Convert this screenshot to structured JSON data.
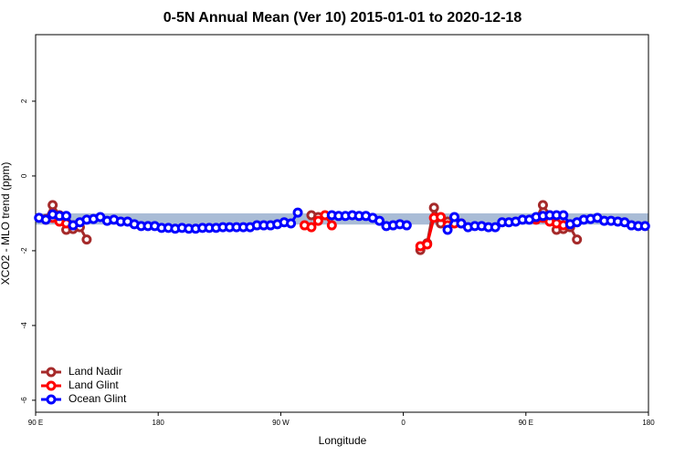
{
  "chart_data": {
    "type": "scatter",
    "title": "0-5N Annual Mean (Ver 10)   2015-01-01 to 2020-12-18",
    "x_label": "Longitude",
    "y_label": "XCO2 - MLO trend (ppm)",
    "xlim": [
      90,
      540
    ],
    "ylim": [
      -6.32,
      3.78
    ],
    "xticks": [
      {
        "value": 90,
        "label": "90 E"
      },
      180,
      {
        "value": 270,
        "label": "90 W"
      },
      {
        "value": 360,
        "label": "0"
      },
      {
        "value": 450,
        "label": "90 E"
      },
      {
        "value": 540,
        "label": "180"
      }
    ],
    "yticks": [
      2,
      0,
      -2,
      -4,
      -6
    ],
    "band": {
      "range": [
        -1.3,
        -1.0
      ],
      "color": "#a9bcd6"
    },
    "legend": "bottom-left",
    "series": [
      {
        "name": "Land Nadir",
        "color": "#a52a2a",
        "x": [
          97.5,
          102.5,
          107.5,
          112.5,
          117.5,
          122.5,
          127.5,
          200,
          292.5,
          297.5,
          340,
          372.5,
          377.5,
          382.5,
          387.5,
          392.5,
          420,
          457.5,
          462.5,
          467.5,
          472.5,
          477.5,
          482.5,
          487.5
        ],
        "values": [
          -1.15,
          -0.78,
          -1.05,
          -1.44,
          -1.42,
          -1.37,
          -1.7,
          null,
          -1.05,
          -1.1,
          null,
          -1.98,
          -1.8,
          -0.85,
          -1.27,
          -1.22,
          null,
          -1.15,
          -0.78,
          -1.05,
          -1.44,
          -1.42,
          -1.37,
          -1.7
        ]
      },
      {
        "name": "Land Glint",
        "color": "#ff0000",
        "x": [
          97.5,
          102.5,
          107.5,
          112.5,
          117.5,
          200,
          287.5,
          292.5,
          297.5,
          302.5,
          307.5,
          340,
          372.5,
          377.5,
          382.5,
          387.5,
          392.5,
          397.5,
          402.5,
          420,
          457.5,
          462.5,
          467.5,
          472.5,
          477.5
        ],
        "values": [
          -1.17,
          -1.12,
          -1.22,
          -1.27,
          -1.32,
          null,
          -1.32,
          -1.37,
          -1.2,
          -1.05,
          -1.32,
          null,
          -1.88,
          -1.83,
          -1.12,
          -1.1,
          -1.32,
          -1.27,
          -1.27,
          null,
          -1.17,
          -1.12,
          -1.22,
          -1.27,
          -1.32
        ]
      },
      {
        "name": "Ocean Glint",
        "color": "#0000ff",
        "x": [
          92.5,
          97.5,
          102.5,
          107.5,
          112.5,
          117.5,
          122.5,
          127.5,
          132.5,
          137.5,
          142.5,
          147.5,
          152.5,
          157.5,
          162.5,
          167.5,
          172.5,
          177.5,
          182.5,
          187.5,
          192.5,
          197.5,
          202.5,
          207.5,
          212.5,
          217.5,
          222.5,
          227.5,
          232.5,
          237.5,
          242.5,
          247.5,
          252.5,
          257.5,
          262.5,
          267.5,
          272.5,
          277.5,
          282.5,
          287.5,
          292.5,
          297.5,
          302.5,
          307.5,
          312.5,
          317.5,
          322.5,
          327.5,
          332.5,
          337.5,
          342.5,
          347.5,
          352.5,
          357.5,
          362.5,
          367.5,
          372.5,
          377.5,
          382.5,
          387.5,
          392.5,
          397.5,
          402.5,
          407.5,
          412.5,
          417.5,
          422.5,
          427.5,
          432.5,
          437.5,
          442.5,
          447.5,
          452.5,
          457.5,
          462.5,
          467.5,
          472.5,
          477.5,
          482.5,
          487.5,
          492.5,
          497.5,
          502.5,
          507.5,
          512.5,
          517.5,
          522.5,
          527.5,
          532.5,
          537.5
        ],
        "values": [
          -1.12,
          -1.17,
          -1.03,
          -1.07,
          -1.07,
          -1.32,
          -1.24,
          -1.17,
          -1.15,
          -1.1,
          -1.2,
          -1.17,
          -1.22,
          -1.22,
          -1.29,
          -1.34,
          -1.34,
          -1.34,
          -1.39,
          -1.39,
          -1.41,
          -1.39,
          -1.41,
          -1.41,
          -1.39,
          -1.39,
          -1.39,
          -1.37,
          -1.37,
          -1.37,
          -1.37,
          -1.37,
          -1.32,
          -1.32,
          -1.32,
          -1.29,
          -1.24,
          -1.27,
          -0.98,
          null,
          null,
          null,
          null,
          -1.05,
          -1.07,
          -1.07,
          -1.05,
          -1.07,
          -1.07,
          -1.12,
          -1.2,
          -1.34,
          -1.32,
          -1.29,
          -1.32,
          null,
          null,
          null,
          null,
          null,
          -1.44,
          -1.1,
          -1.27,
          -1.37,
          -1.34,
          -1.34,
          -1.37,
          -1.37,
          -1.24,
          -1.24,
          -1.22,
          -1.17,
          -1.17,
          -1.1,
          -1.07,
          -1.05,
          -1.05,
          -1.05,
          -1.29,
          -1.24,
          -1.17,
          -1.15,
          -1.12,
          -1.2,
          -1.2,
          -1.22,
          -1.24,
          -1.32,
          -1.34,
          -1.34
        ]
      }
    ]
  }
}
